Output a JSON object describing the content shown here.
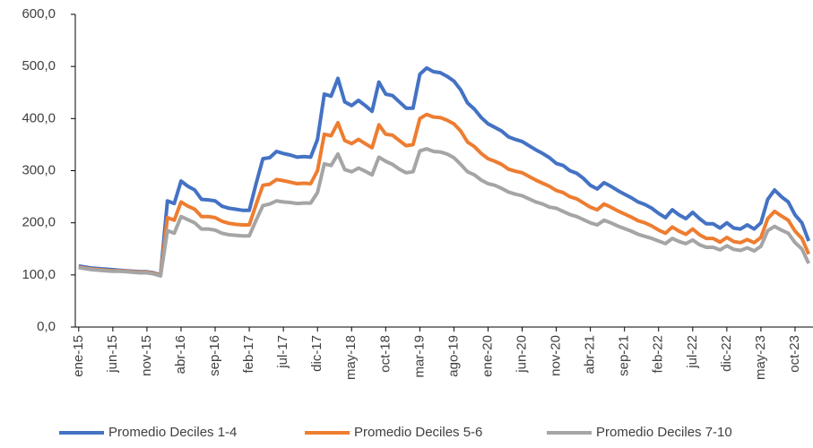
{
  "chart_data": {
    "type": "line",
    "categories": [
      "ene-15",
      null,
      null,
      null,
      null,
      "jun-15",
      null,
      null,
      null,
      null,
      "nov-15",
      null,
      null,
      null,
      null,
      "abr-16",
      null,
      null,
      null,
      null,
      "sep-16",
      null,
      null,
      null,
      null,
      "feb-17",
      null,
      null,
      null,
      null,
      "jul-17",
      null,
      null,
      null,
      null,
      "dic-17",
      null,
      null,
      null,
      null,
      "may-18",
      null,
      null,
      null,
      null,
      "oct-18",
      null,
      null,
      null,
      null,
      "mar-19",
      null,
      null,
      null,
      null,
      "ago-19",
      null,
      null,
      null,
      null,
      "ene-20",
      null,
      null,
      null,
      null,
      "jun-20",
      null,
      null,
      null,
      null,
      "nov-20",
      null,
      null,
      null,
      null,
      "abr-21",
      null,
      null,
      null,
      null,
      "sep-21",
      null,
      null,
      null,
      null,
      "feb-22",
      null,
      null,
      null,
      null,
      "jul-22",
      null,
      null,
      null,
      null,
      "dic-22",
      null,
      null,
      null,
      null,
      "may-23",
      null,
      null,
      null,
      null,
      "oct-23",
      null,
      null
    ],
    "series": [
      {
        "name": "Promedio Deciles 1-4",
        "color": "#4472c4",
        "values": [
          117,
          115,
          113,
          112,
          111,
          110,
          109,
          108,
          107,
          106,
          106,
          104,
          100,
          242,
          237,
          280,
          270,
          263,
          245,
          244,
          242,
          232,
          228,
          226,
          224,
          224,
          275,
          323,
          325,
          337,
          333,
          330,
          326,
          327,
          326,
          360,
          447,
          443,
          477,
          432,
          425,
          435,
          425,
          414,
          470,
          447,
          444,
          432,
          420,
          420,
          485,
          497,
          490,
          488,
          481,
          472,
          455,
          430,
          418,
          402,
          390,
          383,
          376,
          365,
          360,
          356,
          348,
          340,
          333,
          325,
          314,
          310,
          300,
          295,
          285,
          272,
          265,
          277,
          270,
          262,
          255,
          248,
          240,
          235,
          228,
          218,
          210,
          225,
          215,
          208,
          220,
          208,
          198,
          198,
          190,
          200,
          190,
          188,
          196,
          188,
          200,
          245,
          263,
          250,
          240,
          215,
          200,
          165
        ]
      },
      {
        "name": "Promedio Deciles 5-6",
        "color": "#ed7d31",
        "values": [
          115,
          113,
          111,
          110,
          109,
          108,
          108,
          107,
          106,
          105,
          105,
          103,
          99,
          210,
          205,
          240,
          232,
          226,
          212,
          212,
          210,
          203,
          199,
          197,
          196,
          196,
          235,
          272,
          274,
          283,
          281,
          278,
          275,
          276,
          275,
          300,
          370,
          367,
          392,
          358,
          352,
          360,
          352,
          344,
          388,
          370,
          368,
          358,
          348,
          350,
          400,
          408,
          403,
          402,
          397,
          390,
          376,
          355,
          346,
          333,
          323,
          318,
          312,
          303,
          299,
          296,
          289,
          282,
          276,
          270,
          262,
          258,
          250,
          246,
          238,
          230,
          225,
          236,
          230,
          223,
          217,
          211,
          204,
          200,
          194,
          186,
          180,
          192,
          184,
          178,
          188,
          177,
          170,
          170,
          163,
          172,
          164,
          162,
          168,
          162,
          172,
          208,
          222,
          213,
          205,
          184,
          170,
          140
        ]
      },
      {
        "name": "Promedio Deciles 7-10",
        "color": "#a5a5a5",
        "values": [
          114,
          112,
          110,
          109,
          108,
          107,
          107,
          106,
          105,
          104,
          104,
          102,
          98,
          185,
          180,
          212,
          206,
          200,
          188,
          188,
          186,
          180,
          177,
          176,
          175,
          175,
          205,
          233,
          236,
          242,
          240,
          239,
          237,
          238,
          238,
          258,
          313,
          310,
          332,
          302,
          298,
          305,
          299,
          292,
          326,
          318,
          312,
          303,
          296,
          298,
          338,
          342,
          337,
          336,
          332,
          325,
          312,
          298,
          292,
          282,
          275,
          272,
          266,
          259,
          255,
          252,
          246,
          240,
          236,
          230,
          228,
          222,
          216,
          212,
          206,
          200,
          196,
          205,
          200,
          194,
          189,
          184,
          178,
          174,
          170,
          165,
          160,
          170,
          164,
          160,
          167,
          158,
          153,
          153,
          148,
          156,
          149,
          147,
          152,
          146,
          155,
          185,
          193,
          186,
          180,
          162,
          150,
          122
        ]
      }
    ],
    "ylim": [
      0,
      600
    ],
    "yticks": [
      {
        "value": 0,
        "label": "0,0"
      },
      {
        "value": 100,
        "label": "100,0"
      },
      {
        "value": 200,
        "label": "200,0"
      },
      {
        "value": 300,
        "label": "300,0"
      },
      {
        "value": 400,
        "label": "400,0"
      },
      {
        "value": 500,
        "label": "500,0"
      },
      {
        "value": 600,
        "label": "600,0"
      }
    ],
    "grid": false,
    "legend": "bottom"
  }
}
